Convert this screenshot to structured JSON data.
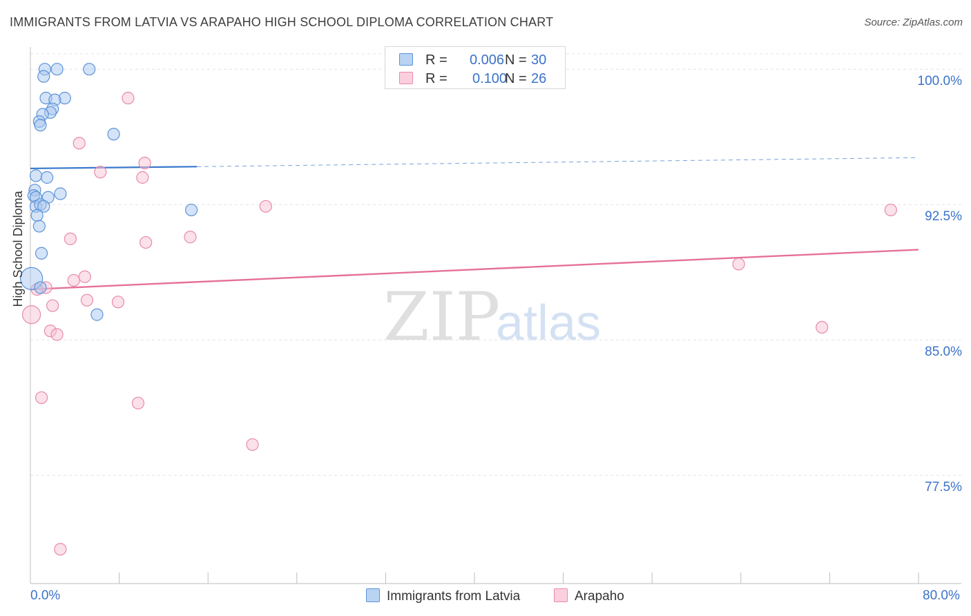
{
  "title": "IMMIGRANTS FROM LATVIA VS ARAPAHO HIGH SCHOOL DIPLOMA CORRELATION CHART",
  "source": "Source: ZipAtlas.com",
  "watermark": {
    "zip": "ZIP",
    "atlas": "atlas"
  },
  "colors": {
    "blue_fill": "#a9c8f0",
    "blue_stroke": "#5b93d8",
    "blue_line": "#3a78cc",
    "pink_fill": "#f7c3d4",
    "pink_stroke": "#e88aa8",
    "pink_line": "#e5709a",
    "axis_text": "#3b72c9",
    "grid": "#e3e3e3"
  },
  "legend": {
    "series1": {
      "r_label": "R =",
      "r_value": "0.006",
      "n_label": "N =",
      "n_value": "30"
    },
    "series2": {
      "r_label": "R =",
      "r_value": "0.100",
      "n_label": "N =",
      "n_value": "26"
    }
  },
  "chart_data": {
    "type": "scatter",
    "title": "IMMIGRANTS FROM LATVIA VS ARAPAHO HIGH SCHOOL DIPLOMA CORRELATION CHART",
    "xlabel": "",
    "ylabel": "High School Diploma",
    "xlim": [
      0,
      80
    ],
    "ylim": [
      71.5,
      101.5
    ],
    "x_tick_labels": [
      "0.0%",
      "80.0%"
    ],
    "y_ticks": [
      77.5,
      85.0,
      92.5,
      100.0
    ],
    "y_tick_labels": [
      "77.5%",
      "85.0%",
      "92.5%",
      "100.0%"
    ],
    "grid": true,
    "series": [
      {
        "name": "Immigrants from Latvia",
        "color": "#5b93d8",
        "trend": {
          "x": [
            0,
            15
          ],
          "y": [
            94.5,
            94.6
          ],
          "dashed_to_x": 80,
          "dashed_end_y": 95.1
        },
        "points": [
          {
            "x": 1.3,
            "y": 100.0
          },
          {
            "x": 2.4,
            "y": 100.0
          },
          {
            "x": 5.3,
            "y": 100.0
          },
          {
            "x": 1.2,
            "y": 99.6
          },
          {
            "x": 1.4,
            "y": 98.4
          },
          {
            "x": 3.1,
            "y": 98.4
          },
          {
            "x": 2.2,
            "y": 98.3
          },
          {
            "x": 2.0,
            "y": 97.8
          },
          {
            "x": 1.8,
            "y": 97.6
          },
          {
            "x": 1.1,
            "y": 97.5
          },
          {
            "x": 0.8,
            "y": 97.1
          },
          {
            "x": 0.9,
            "y": 96.9
          },
          {
            "x": 7.5,
            "y": 96.4
          },
          {
            "x": 0.5,
            "y": 94.1
          },
          {
            "x": 1.5,
            "y": 94.0
          },
          {
            "x": 0.4,
            "y": 93.3
          },
          {
            "x": 0.3,
            "y": 93.0
          },
          {
            "x": 0.5,
            "y": 92.9
          },
          {
            "x": 2.7,
            "y": 93.1
          },
          {
            "x": 1.6,
            "y": 92.9
          },
          {
            "x": 0.5,
            "y": 92.4
          },
          {
            "x": 0.9,
            "y": 92.5
          },
          {
            "x": 1.2,
            "y": 92.4
          },
          {
            "x": 0.6,
            "y": 91.9
          },
          {
            "x": 14.5,
            "y": 92.2
          },
          {
            "x": 0.8,
            "y": 91.3
          },
          {
            "x": 1.0,
            "y": 89.8
          },
          {
            "x": 0.1,
            "y": 88.4,
            "r": 16
          },
          {
            "x": 0.9,
            "y": 87.9
          },
          {
            "x": 6.0,
            "y": 86.4
          }
        ]
      },
      {
        "name": "Arapaho",
        "color": "#e88aa8",
        "trend": {
          "x": [
            0,
            80
          ],
          "y": [
            87.8,
            90.0
          ]
        },
        "points": [
          {
            "x": 8.8,
            "y": 98.4
          },
          {
            "x": 4.4,
            "y": 95.9
          },
          {
            "x": 10.3,
            "y": 94.8
          },
          {
            "x": 6.3,
            "y": 94.3
          },
          {
            "x": 10.1,
            "y": 94.0
          },
          {
            "x": 21.2,
            "y": 92.4
          },
          {
            "x": 77.5,
            "y": 92.2
          },
          {
            "x": 3.6,
            "y": 90.6
          },
          {
            "x": 14.4,
            "y": 90.7
          },
          {
            "x": 10.4,
            "y": 90.4
          },
          {
            "x": 63.8,
            "y": 89.2
          },
          {
            "x": 4.9,
            "y": 88.5
          },
          {
            "x": 3.9,
            "y": 88.3
          },
          {
            "x": 1.4,
            "y": 87.9
          },
          {
            "x": 0.6,
            "y": 87.8
          },
          {
            "x": 5.1,
            "y": 87.2
          },
          {
            "x": 7.9,
            "y": 87.1
          },
          {
            "x": 2.0,
            "y": 86.9
          },
          {
            "x": 0.1,
            "y": 86.4,
            "r": 13
          },
          {
            "x": 1.8,
            "y": 85.5
          },
          {
            "x": 2.4,
            "y": 85.3
          },
          {
            "x": 71.3,
            "y": 85.7
          },
          {
            "x": 1.0,
            "y": 81.8
          },
          {
            "x": 9.7,
            "y": 81.5
          },
          {
            "x": 20.0,
            "y": 79.2
          },
          {
            "x": 2.7,
            "y": 73.4
          }
        ]
      }
    ]
  }
}
